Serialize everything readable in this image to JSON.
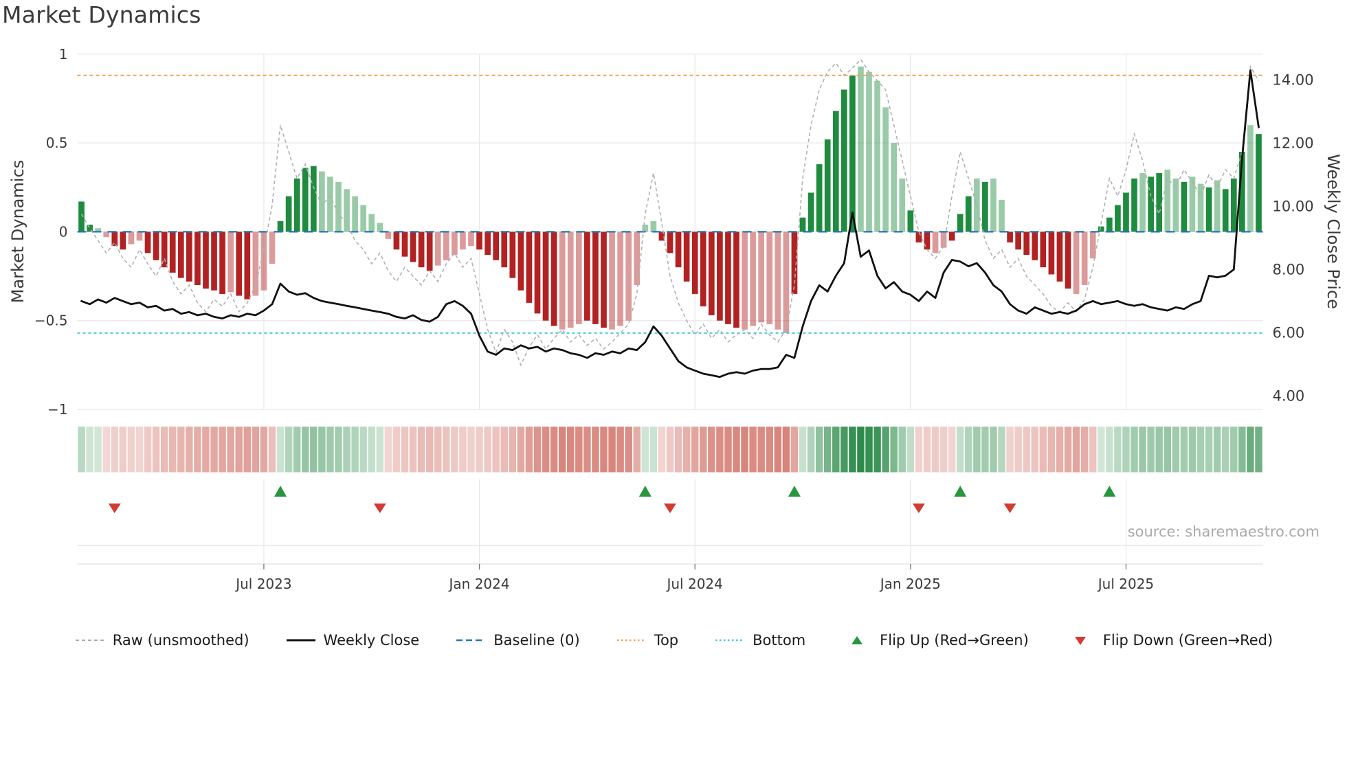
{
  "title": "Market Dynamics",
  "source_note": "source: sharemaestro.com",
  "axes": {
    "left_label": "Market Dynamics",
    "right_label": "Weekly Close Price",
    "left_ticks": [
      {
        "label": "1",
        "value": 1
      },
      {
        "label": "0.5",
        "value": 0.5
      },
      {
        "label": "0",
        "value": 0
      },
      {
        "label": "−0.5",
        "value": -0.5
      },
      {
        "label": "−1",
        "value": -1
      }
    ],
    "right_ticks": [
      {
        "label": "14.00",
        "value": 14
      },
      {
        "label": "12.00",
        "value": 12
      },
      {
        "label": "10.00",
        "value": 10
      },
      {
        "label": "8.00",
        "value": 8
      },
      {
        "label": "6.00",
        "value": 6
      },
      {
        "label": "4.00",
        "value": 4
      }
    ],
    "x_ticks": [
      {
        "label": "Jul 2023",
        "week": 22
      },
      {
        "label": "Jan 2024",
        "week": 48
      },
      {
        "label": "Jul 2024",
        "week": 74
      },
      {
        "label": "Jan 2025",
        "week": 100
      },
      {
        "label": "Jul 2025",
        "week": 126
      }
    ]
  },
  "legend": [
    {
      "label": "Raw (unsmoothed)",
      "swatch": "dash-gray"
    },
    {
      "label": "Weekly Close",
      "swatch": "solid-black"
    },
    {
      "label": "Baseline (0)",
      "swatch": "dash-blue"
    },
    {
      "label": "Top",
      "swatch": "dot-orange"
    },
    {
      "label": "Bottom",
      "swatch": "dot-cyan"
    },
    {
      "label": "Flip Up (Red→Green)",
      "swatch": "tri-up-green"
    },
    {
      "label": "Flip Down (Green→Red)",
      "swatch": "tri-down-red"
    }
  ],
  "colors": {
    "bar_green": "#1e8b3e",
    "bar_red": "#b22222",
    "light_opacity": 0.45,
    "close_line": "#111111",
    "raw_line": "#b0b0b0",
    "baseline": "#1f77b4",
    "top_line": "#f2a250",
    "bottom_line": "#40c8e0",
    "flip_up": "#27963c",
    "flip_down": "#d23b33",
    "heat_green": "24,128,56",
    "heat_red": "192,57,43",
    "grid": "#e7e7e7",
    "sub_line": "#e0e0e0",
    "axis_tick": "#777777"
  },
  "chart_data": {
    "type": "bar",
    "subtype": "weekly oscillator bars + weekly close price line + raw oscillator line + heatmap strip + flip markers",
    "title": "Market Dynamics",
    "x_unit": "weeks, approx Feb 2023 – Oct 2025",
    "n_points": 143,
    "ylim_left": [
      -1,
      1
    ],
    "ylim_right_price": [
      3.55,
      14.8
    ],
    "baseline_value": 0,
    "top_threshold": 0.88,
    "bottom_threshold": -0.57,
    "grid": true,
    "legend_position": "bottom-center",
    "bars_market_dynamics": [
      0.17,
      0.04,
      0.02,
      -0.03,
      -0.08,
      -0.1,
      -0.07,
      -0.05,
      -0.12,
      -0.16,
      -0.2,
      -0.23,
      -0.26,
      -0.28,
      -0.3,
      -0.32,
      -0.33,
      -0.35,
      -0.34,
      -0.36,
      -0.38,
      -0.36,
      -0.33,
      -0.18,
      0.06,
      0.2,
      0.3,
      0.36,
      0.37,
      0.34,
      0.31,
      0.28,
      0.24,
      0.2,
      0.15,
      0.1,
      0.05,
      -0.04,
      -0.1,
      -0.14,
      -0.17,
      -0.2,
      -0.22,
      -0.19,
      -0.16,
      -0.13,
      -0.1,
      -0.08,
      -0.1,
      -0.13,
      -0.16,
      -0.2,
      -0.26,
      -0.33,
      -0.4,
      -0.46,
      -0.5,
      -0.53,
      -0.55,
      -0.54,
      -0.52,
      -0.5,
      -0.52,
      -0.54,
      -0.55,
      -0.53,
      -0.5,
      -0.3,
      0.04,
      0.06,
      -0.05,
      -0.12,
      -0.2,
      -0.28,
      -0.35,
      -0.42,
      -0.47,
      -0.5,
      -0.52,
      -0.54,
      -0.55,
      -0.53,
      -0.51,
      -0.52,
      -0.55,
      -0.57,
      -0.35,
      0.08,
      0.22,
      0.38,
      0.52,
      0.68,
      0.8,
      0.88,
      0.93,
      0.9,
      0.85,
      0.7,
      0.5,
      0.3,
      0.12,
      -0.06,
      -0.1,
      -0.12,
      -0.09,
      -0.05,
      0.1,
      0.2,
      0.3,
      0.28,
      0.3,
      0.18,
      -0.06,
      -0.1,
      -0.13,
      -0.16,
      -0.2,
      -0.24,
      -0.28,
      -0.32,
      -0.35,
      -0.3,
      -0.15,
      0.03,
      0.08,
      0.15,
      0.22,
      0.3,
      0.33,
      0.31,
      0.33,
      0.35,
      0.3,
      0.28,
      0.31,
      0.27,
      0.25,
      0.29,
      0.24,
      0.3,
      0.45,
      0.6,
      0.55
    ],
    "bar_shades": "DDLLDDLLDDDDDDDDDDLDDLLLDDDDDLLLLLLLLLDDDDDLLLLLDDDDDDDDDDLLLDDDLLLLLLDDDDDDDDDDLLLLLLDDDDDDDDLLLLLLDDDLLDDDLDLLDDDDDDDDLLLDDDDDLDDLLDLLDLDDDL",
    "raw_unsmoothed": [
      0.1,
      0.02,
      -0.05,
      -0.12,
      -0.06,
      -0.15,
      -0.2,
      -0.1,
      -0.18,
      -0.25,
      -0.15,
      -0.28,
      -0.35,
      -0.3,
      -0.4,
      -0.45,
      -0.38,
      -0.42,
      -0.35,
      -0.45,
      -0.4,
      -0.3,
      -0.1,
      0.15,
      0.6,
      0.45,
      0.3,
      0.38,
      0.25,
      0.15,
      0.2,
      0.1,
      0.05,
      -0.05,
      -0.1,
      -0.18,
      -0.12,
      -0.22,
      -0.28,
      -0.2,
      -0.25,
      -0.3,
      -0.22,
      -0.28,
      -0.18,
      -0.12,
      -0.2,
      -0.15,
      -0.35,
      -0.55,
      -0.68,
      -0.55,
      -0.62,
      -0.75,
      -0.65,
      -0.58,
      -0.66,
      -0.6,
      -0.55,
      -0.62,
      -0.58,
      -0.64,
      -0.6,
      -0.66,
      -0.62,
      -0.57,
      -0.52,
      -0.35,
      0.1,
      0.33,
      0.05,
      -0.25,
      -0.4,
      -0.5,
      -0.58,
      -0.52,
      -0.6,
      -0.55,
      -0.62,
      -0.58,
      -0.55,
      -0.6,
      -0.52,
      -0.58,
      -0.62,
      -0.55,
      -0.3,
      0.3,
      0.6,
      0.8,
      0.9,
      0.95,
      0.88,
      0.92,
      0.97,
      0.9,
      0.85,
      0.8,
      0.6,
      0.4,
      0.2,
      0.0,
      -0.1,
      -0.15,
      -0.08,
      0.2,
      0.45,
      0.3,
      0.15,
      -0.05,
      -0.15,
      -0.1,
      -0.2,
      -0.15,
      -0.25,
      -0.3,
      -0.35,
      -0.42,
      -0.45,
      -0.4,
      -0.45,
      -0.38,
      -0.2,
      0.05,
      0.3,
      0.2,
      0.35,
      0.55,
      0.4,
      0.2,
      0.1,
      0.3,
      0.25,
      0.35,
      0.28,
      0.2,
      0.32,
      0.25,
      0.35,
      0.3,
      0.45,
      0.93,
      0.85
    ],
    "weekly_close_price": [
      7.0,
      6.9,
      7.05,
      6.95,
      7.1,
      7.0,
      6.9,
      6.95,
      6.8,
      6.85,
      6.7,
      6.75,
      6.6,
      6.65,
      6.55,
      6.6,
      6.5,
      6.45,
      6.55,
      6.5,
      6.6,
      6.55,
      6.7,
      6.9,
      7.55,
      7.3,
      7.2,
      7.25,
      7.1,
      7.0,
      6.95,
      6.9,
      6.85,
      6.8,
      6.75,
      6.7,
      6.65,
      6.6,
      6.5,
      6.45,
      6.55,
      6.4,
      6.35,
      6.5,
      6.9,
      7.0,
      6.85,
      6.6,
      5.9,
      5.4,
      5.3,
      5.5,
      5.45,
      5.6,
      5.5,
      5.55,
      5.4,
      5.5,
      5.45,
      5.35,
      5.3,
      5.2,
      5.35,
      5.3,
      5.4,
      5.35,
      5.5,
      5.45,
      5.7,
      6.2,
      5.9,
      5.5,
      5.1,
      4.9,
      4.8,
      4.7,
      4.65,
      4.6,
      4.7,
      4.75,
      4.7,
      4.8,
      4.85,
      4.85,
      4.9,
      5.3,
      5.2,
      6.2,
      7.0,
      7.5,
      7.3,
      7.8,
      8.2,
      9.8,
      8.4,
      8.6,
      7.8,
      7.4,
      7.6,
      7.3,
      7.2,
      7.0,
      7.3,
      7.1,
      7.9,
      8.3,
      8.25,
      8.1,
      8.2,
      7.9,
      7.5,
      7.3,
      6.9,
      6.7,
      6.6,
      6.8,
      6.7,
      6.6,
      6.65,
      6.6,
      6.7,
      6.9,
      7.0,
      6.9,
      6.95,
      7.0,
      6.9,
      6.85,
      6.9,
      6.8,
      6.75,
      6.7,
      6.8,
      6.75,
      6.9,
      7.0,
      7.8,
      7.75,
      7.8,
      8.0,
      11.5,
      14.3,
      12.5
    ],
    "flip_up_weeks": [
      24,
      68,
      86,
      106,
      124
    ],
    "flip_down_weeks": [
      4,
      36,
      71,
      101,
      112
    ],
    "heatmap_note": "per-week red-to-green intensity strip derived from bars_market_dynamics sign and magnitude"
  }
}
